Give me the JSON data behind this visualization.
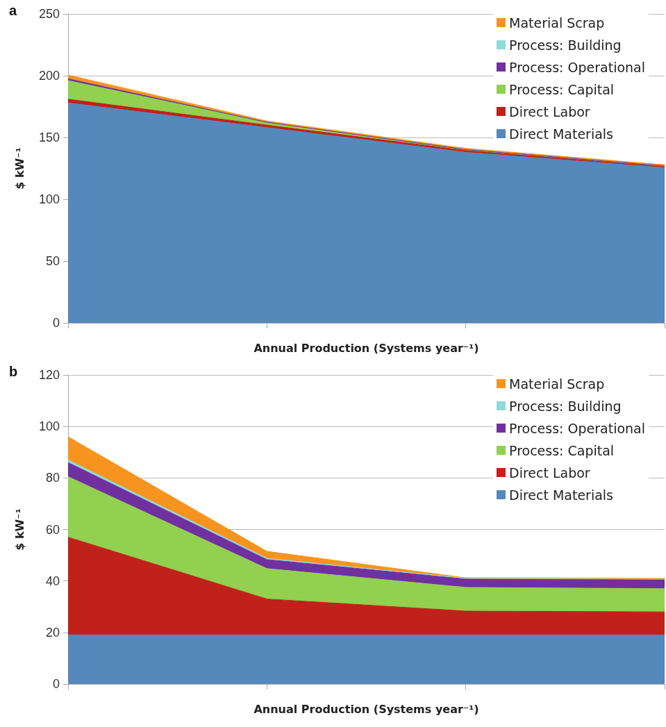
{
  "chart_data": [
    {
      "type": "area",
      "title": "a",
      "xlabel": "Annual Production (Systems year⁻¹)",
      "ylabel": "$ kW⁻¹",
      "categories": [
        null,
        null,
        null,
        null
      ],
      "stacked": true,
      "ylim": [
        0,
        250
      ],
      "yticks": [
        0,
        50,
        100,
        150,
        200,
        250
      ],
      "grid": "y",
      "legend": "top right",
      "tick_labels": "y",
      "marker": "none",
      "series": [
        {
          "name": "Direct Materials",
          "color": "#5588bb",
          "values": [
            178,
            158,
            138,
            125.5
          ]
        },
        {
          "name": "Direct Labor",
          "color": "#c0211a",
          "values": [
            3,
            2,
            1.5,
            1
          ]
        },
        {
          "name": "Process: Capital",
          "color": "#92d050",
          "values": [
            15,
            2,
            0.5,
            0.3
          ]
        },
        {
          "name": "Process: Operational",
          "color": "#7030a0",
          "values": [
            1.5,
            0.3,
            0.2,
            0.1
          ]
        },
        {
          "name": "Process: Building",
          "color": "#8fdbd8",
          "values": [
            null,
            null,
            null,
            null
          ]
        },
        {
          "name": "Material Scrap",
          "color": "#f79420",
          "values": [
            3,
            1,
            1,
            1
          ]
        }
      ]
    },
    {
      "type": "area",
      "title": "b",
      "xlabel": "Annual Production (Systems year⁻¹)",
      "ylabel": "$ kW⁻¹",
      "categories": [
        null,
        null,
        null,
        null
      ],
      "stacked": true,
      "ylim": [
        0,
        120
      ],
      "yticks": [
        0,
        20,
        40,
        60,
        80,
        100,
        120
      ],
      "grid": "y",
      "legend": "top right",
      "tick_labels": "y",
      "marker": "none",
      "series": [
        {
          "name": "Direct Materials",
          "color": "#5588bb",
          "values": [
            19,
            19,
            19,
            19
          ]
        },
        {
          "name": "Direct Labor",
          "color": "#c0211a",
          "values": [
            38,
            14,
            9.3,
            9
          ]
        },
        {
          "name": "Process: Capital",
          "color": "#92d050",
          "values": [
            23.5,
            11.8,
            9.2,
            9
          ]
        },
        {
          "name": "Process: Operational",
          "color": "#7030a0",
          "values": [
            5.5,
            3.5,
            3.3,
            3.5
          ]
        },
        {
          "name": "Process: Building",
          "color": "#8fdbd8",
          "values": [
            1,
            0.5,
            0.2,
            0.2
          ]
        },
        {
          "name": "Material Scrap",
          "color": "#f79420",
          "values": [
            9,
            2.7,
            0.2,
            0.3
          ]
        }
      ]
    }
  ]
}
